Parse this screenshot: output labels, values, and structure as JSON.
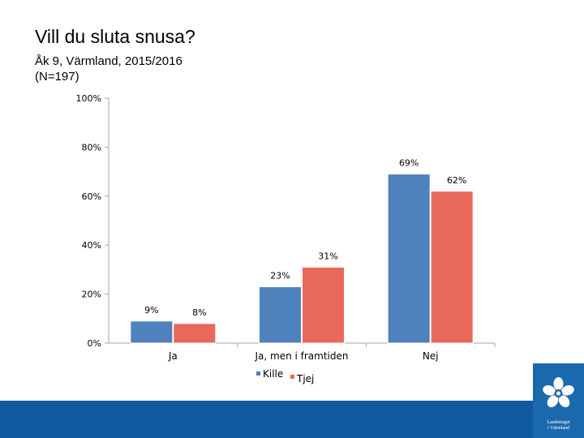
{
  "slide": {
    "title": "Vill du sluta snusa?",
    "subtitle_line1": "Åk 9, Värmland, 2015/2016",
    "subtitle_line2": "(N=197)"
  },
  "logo": {
    "line1": "Landstinget",
    "line2": "i Värmland"
  },
  "colors": {
    "kille": "#4f81bd",
    "tjej": "#e8695a",
    "axis": "#a6a6a6",
    "footer": "#0f5aa0"
  },
  "chart_data": {
    "type": "bar",
    "title": "",
    "xlabel": "",
    "ylabel": "",
    "categories": [
      "Ja",
      "Ja, men i framtiden",
      "Nej"
    ],
    "series": [
      {
        "name": "Kille",
        "values": [
          9,
          23,
          69
        ],
        "labels": [
          "9%",
          "23%",
          "69%"
        ]
      },
      {
        "name": "Tjej",
        "values": [
          8,
          31,
          62
        ],
        "labels": [
          "8%",
          "31%",
          "62%"
        ]
      }
    ],
    "ylim": [
      0,
      100
    ],
    "yticks": [
      0,
      20,
      40,
      60,
      80,
      100
    ],
    "ytick_labels": [
      "0%",
      "20%",
      "40%",
      "60%",
      "80%",
      "100%"
    ],
    "grid": false,
    "legend": "bottom"
  }
}
